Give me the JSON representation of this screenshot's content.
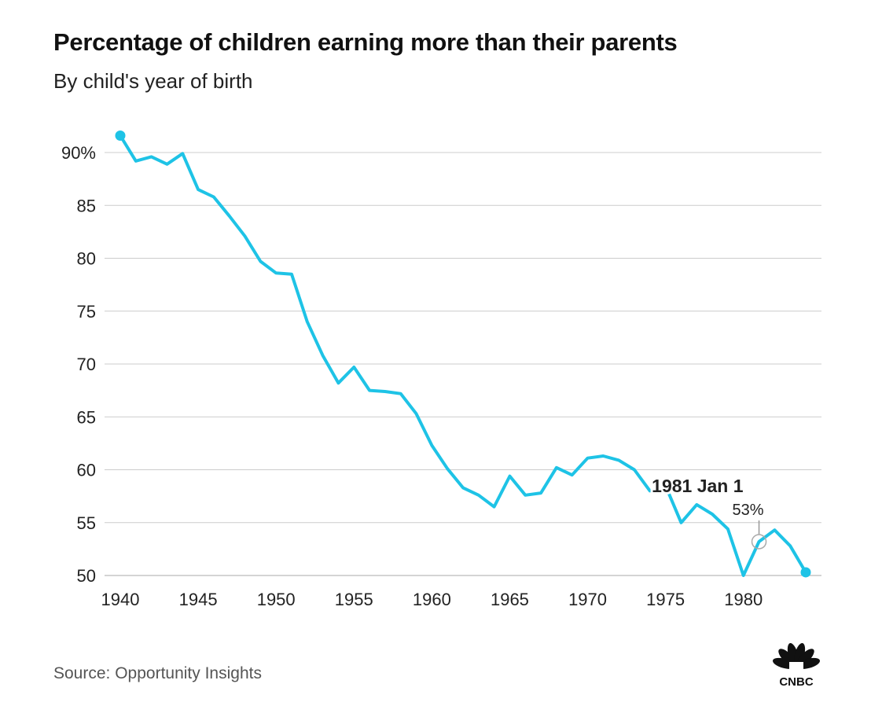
{
  "header": {
    "title": "Percentage of children earning more than their parents",
    "subtitle": "By child's year of birth"
  },
  "footer": {
    "source": "Source: Opportunity Insights",
    "logo_text": "CNBC"
  },
  "colors": {
    "line": "#1ec3e6",
    "grid": "#cccccc",
    "text": "#222222"
  },
  "chart_data": {
    "type": "line",
    "title": "Percentage of children earning more than their parents",
    "subtitle": "By child's year of birth",
    "xlabel": "",
    "ylabel": "",
    "xlim": [
      1940,
      1984
    ],
    "ylim": [
      50,
      90
    ],
    "x_ticks": [
      1940,
      1945,
      1950,
      1955,
      1960,
      1965,
      1970,
      1975,
      1980
    ],
    "y_ticks": [
      50,
      55,
      60,
      65,
      70,
      75,
      80,
      85,
      90
    ],
    "y_tick_labels": [
      "50",
      "55",
      "60",
      "65",
      "70",
      "75",
      "80",
      "85",
      "90%"
    ],
    "grid": "horizontal",
    "series": [
      {
        "x": [
          1940,
          1941,
          1942,
          1943,
          1944,
          1945,
          1946,
          1947,
          1948,
          1949,
          1950,
          1951,
          1952,
          1953,
          1954,
          1955,
          1956,
          1957,
          1958,
          1959,
          1960,
          1961,
          1962,
          1963,
          1964,
          1965,
          1966,
          1967,
          1968,
          1969,
          1970,
          1971,
          1972,
          1973,
          1974,
          1975,
          1976,
          1977,
          1978,
          1979,
          1980,
          1981,
          1982,
          1983,
          1984
        ],
        "values": [
          91.6,
          89.2,
          89.6,
          88.9,
          89.9,
          86.5,
          85.8,
          84.0,
          82.1,
          79.7,
          78.6,
          78.5,
          74.0,
          70.8,
          68.2,
          69.7,
          67.5,
          67.4,
          67.2,
          65.3,
          62.3,
          60.1,
          58.3,
          57.6,
          56.5,
          59.4,
          57.6,
          57.8,
          60.2,
          59.5,
          61.1,
          61.3,
          60.9,
          60.0,
          58.0,
          58.5,
          55.0,
          56.7,
          55.8,
          54.4,
          50.0,
          53.2,
          54.3,
          52.8,
          50.3
        ]
      }
    ],
    "annotation": {
      "x": 1981,
      "y": 53.2,
      "label": "1981 Jan 1",
      "value_label": "53%"
    }
  }
}
